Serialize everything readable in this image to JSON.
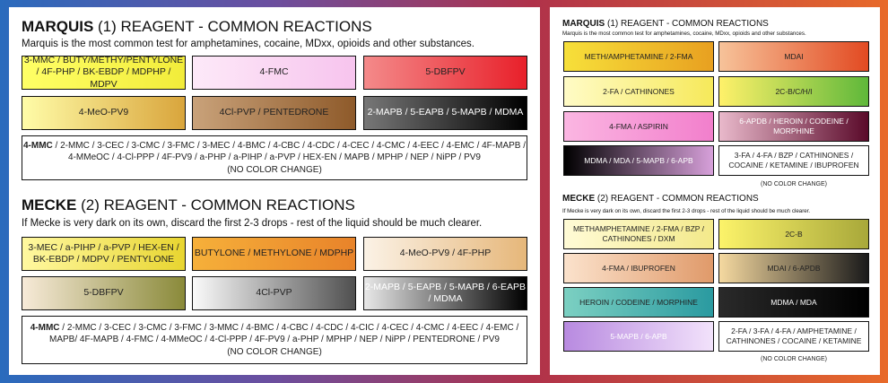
{
  "left": {
    "marquis": {
      "title_bold": "MARQUIS",
      "title_rest": " (1) REAGENT - COMMON REACTIONS",
      "description": "Marquis is the most common test for amphetamines, cocaine, MDxx, opioids and other substances.",
      "swatches": [
        {
          "label": "3-MMC / BUTY/METHY/PENTYLONE / 4F-PHP / BK-EBDP / MDPHP / MDPV",
          "colors": [
            "#ffff66",
            "#f2ec3a"
          ]
        },
        {
          "label": "4-FMC",
          "colors": [
            "#fde9f8",
            "#f7c4ee"
          ]
        },
        {
          "label": "5-DBFPV",
          "colors": [
            "#f48a8a",
            "#e8202a"
          ]
        },
        {
          "label": "4-MeO-PV9",
          "colors": [
            "#fffca8",
            "#d9a53c"
          ]
        },
        {
          "label": "4Cl-PVP / PENTEDRONE",
          "colors": [
            "#c9a27a",
            "#8e5a2a"
          ]
        },
        {
          "label": "2-MAPB / 5-EAPB / 5-MAPB / MDMA",
          "colors": [
            "#777777",
            "#000000"
          ]
        }
      ],
      "info_bold": "4-MMC",
      "info_rest": " / 2-MMC / 3-CEC / 3-CMC / 3-FMC / 3-MEC / 4-BMC / 4-CBC / 4-CDC / 4-CEC / 4-CMC / 4-EEC / 4-EMC / 4F-MAPB / 4-MMeOC / 4-Cl-PPP / 4F-PV9 / a-PHP / a-PIHP / a-PVP / HEX-EN / MAPB / MPHP / NEP / NiPP / PV9",
      "info_note": "(NO COLOR CHANGE)"
    },
    "mecke": {
      "title_bold": "MECKE",
      "title_rest": " (2) REAGENT - COMMON REACTIONS",
      "description": "If Mecke is very dark on its own, discard the first 2-3 drops - rest of the liquid should be much clearer.",
      "swatches": [
        {
          "label": "3-MEC / a-PIHP / a-PVP / HEX-EN / BK-EBDP / MDPV / PENTYLONE",
          "colors": [
            "#fff8a0",
            "#e8d530"
          ]
        },
        {
          "label": "BUTYLONE / METHYLONE / MDPHP",
          "colors": [
            "#f6b03a",
            "#e8832a"
          ]
        },
        {
          "label": "4-MeO-PV9 / 4F-PHP",
          "colors": [
            "#fbf2e6",
            "#e6b77a"
          ]
        },
        {
          "label": "5-DBFPV",
          "colors": [
            "#f7ead8",
            "#8a8a3a"
          ]
        },
        {
          "label": "4Cl-PVP",
          "colors": [
            "#fafafa",
            "#505050"
          ]
        },
        {
          "label": "2-MAPB / 5-EAPB / 5-MAPB / 6-EAPB / MDMA",
          "colors": [
            "#e8e8e8",
            "#000000"
          ]
        }
      ],
      "info_bold": "4-MMC",
      "info_rest": " / 2-MMC / 3-CEC / 3-CMC / 3-FMC / 3-MMC / 4-BMC / 4-CBC / 4-CDC / 4-CIC / 4-CEC / 4-CMC / 4-EEC / 4-EMC / MAPB/ 4F-MAPB / 4-FMC / 4-MMeOC / 4-Cl-PPP / 4F-PV9 / a-PHP / MPHP / NEP / NiPP / PENTEDRONE / PV9",
      "info_note": "(NO COLOR CHANGE)"
    }
  },
  "right": {
    "marquis": {
      "title_bold": "MARQUIS",
      "title_rest": " (1) REAGENT - COMMON REACTIONS",
      "description": "Marquis is the most common test for amphetamines, cocaine, MDxx, opioids and other substances.",
      "swatches": [
        {
          "label": "METH/AMPHETAMINE / 2-FMA",
          "colors": [
            "#f7e03a",
            "#e8a020"
          ]
        },
        {
          "label": "MDAI",
          "colors": [
            "#f7c39a",
            "#e24a22"
          ]
        },
        {
          "label": "2-FA / CATHINONES",
          "colors": [
            "#fffbc6",
            "#f6e95a"
          ]
        },
        {
          "label": "2C-B/C/H/I",
          "colors": [
            "#fff16a",
            "#5fb83a"
          ]
        },
        {
          "label": "4-FMA / ASPIRIN",
          "colors": [
            "#fbb6e2",
            "#f27fcc"
          ]
        },
        {
          "label": "6-APDB / HEROIN / CODEINE / MORPHINE",
          "colors": [
            "#e9b9cb",
            "#5a0a2a"
          ]
        },
        {
          "label": "MDMA / MDA / 5-MAPB / 6-APB",
          "colors": [
            "#000000",
            "#d7a0da"
          ]
        }
      ],
      "info_text": "3-FA / 4-FA / BZP / CATHINONES / COCAINE / KETAMINE / IBUPROFEN",
      "info_note": "(NO COLOR CHANGE)"
    },
    "mecke": {
      "title_bold": "MECKE",
      "title_rest": " (2) REAGENT - COMMON REACTIONS",
      "description": "If Mecke is very dark on its own, discard the first 2-3 drops - rest of the liquid should be much clearer.",
      "swatches": [
        {
          "label": "METHAMPHETAMINE / 2-FMA / BZP / CATHINONES / DXM",
          "colors": [
            "#fffbd6",
            "#f3e98a"
          ]
        },
        {
          "label": "2C-B",
          "colors": [
            "#fcf36a",
            "#a8a83a"
          ]
        },
        {
          "label": "4-FMA / IBUPROFEN",
          "colors": [
            "#fbe2cc",
            "#e09a6a"
          ]
        },
        {
          "label": "MDAI / 6-APDB",
          "colors": [
            "#f5d9a0",
            "#1a1a1a"
          ]
        },
        {
          "label": "HEROIN / CODEINE / MORPHINE",
          "colors": [
            "#7cd0c2",
            "#2a9aa0"
          ]
        },
        {
          "label": "MDMA / MDA",
          "colors": [
            "#2a2a2a",
            "#000000"
          ]
        },
        {
          "label": "5-MAPB / 6-APB",
          "colors": [
            "#b88ae0",
            "#f2e2fb"
          ]
        }
      ],
      "info_text": "2-FA / 3-FA / 4-FA / AMPHETAMINE / CATHINONES / COCAINE / KETAMINE",
      "info_note": "(NO COLOR CHANGE)"
    }
  }
}
